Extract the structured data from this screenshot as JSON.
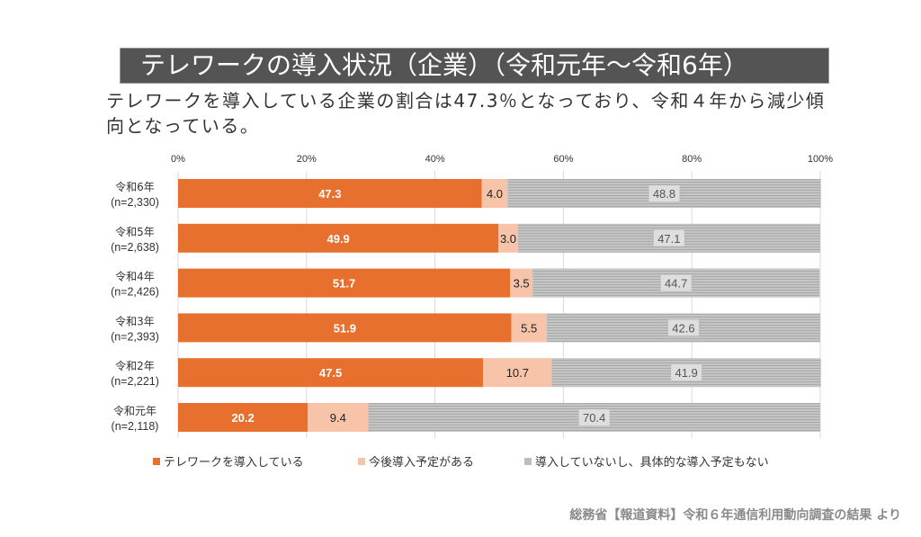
{
  "title": "テレワークの導入状況（企業）（令和元年～令和6年）",
  "subtitle": "テレワークを導入している企業の割合は47.3％となっており、令和４年から減少傾向となっている。",
  "source": "総務省【報道資料】令和６年通信利用動向調査の結果 より",
  "colors": {
    "introduced": "#E8702F",
    "planned": "#F7C3A9",
    "not_planned": "#BEBEBE",
    "title_bar": "#545454"
  },
  "chart_data": {
    "type": "bar",
    "orientation": "horizontal",
    "stacked": true,
    "title": "テレワークの導入状況（企業）（令和元年～令和6年）",
    "xlabel": "",
    "ylabel": "",
    "xlim": [
      0,
      100
    ],
    "x_ticks": [
      "0%",
      "20%",
      "40%",
      "60%",
      "80%",
      "100%"
    ],
    "x_tick_values": [
      0,
      20,
      40,
      60,
      80,
      100
    ],
    "x_axis_position": "top",
    "grid": true,
    "legend_position": "bottom",
    "categories": [
      {
        "year": "令和6年",
        "n": "(n=2,330)"
      },
      {
        "year": "令和5年",
        "n": "(n=2,638)"
      },
      {
        "year": "令和4年",
        "n": "(n=2,426)"
      },
      {
        "year": "令和3年",
        "n": "(n=2,393)"
      },
      {
        "year": "令和2年",
        "n": "(n=2,221)"
      },
      {
        "year": "令和元年",
        "n": "(n=2,118)"
      }
    ],
    "series": [
      {
        "name": "テレワークを導入している",
        "key": "introduced",
        "values": [
          47.3,
          49.9,
          51.7,
          51.9,
          47.5,
          20.2
        ],
        "labels": [
          "47.3",
          "49.9",
          "51.7",
          "51.9",
          "47.5",
          "20.2"
        ]
      },
      {
        "name": "今後導入予定がある",
        "key": "planned",
        "values": [
          4.0,
          3.0,
          3.5,
          5.5,
          10.7,
          9.4
        ],
        "labels": [
          "4.0",
          "3.0",
          "3.5",
          "5.5",
          "10.7",
          "9.4"
        ]
      },
      {
        "name": "導入していないし、具体的な導入予定もない",
        "key": "not_planned",
        "values": [
          48.8,
          47.1,
          44.7,
          42.6,
          41.9,
          70.4
        ],
        "labels": [
          "48.8",
          "47.1",
          "44.7",
          "42.6",
          "41.9",
          "70.4"
        ]
      }
    ]
  }
}
